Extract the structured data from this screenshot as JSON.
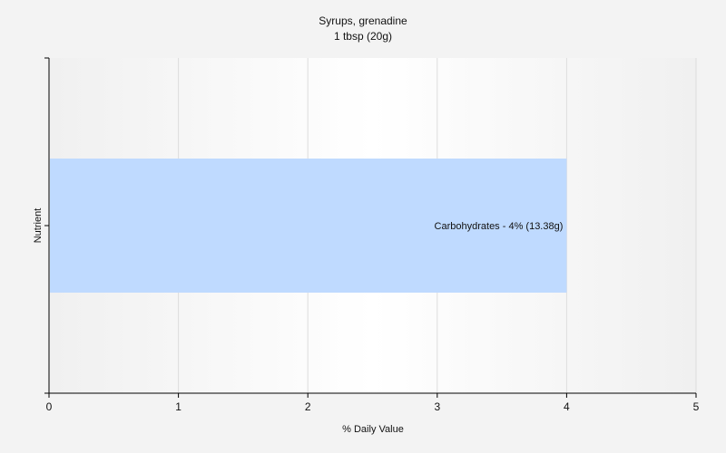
{
  "chart_data": {
    "type": "bar",
    "orientation": "horizontal",
    "title": "Syrups, grenadine",
    "subtitle": "1 tbsp (20g)",
    "xlabel": "% Daily Value",
    "ylabel": "Nutrient",
    "xlim": [
      0,
      5
    ],
    "xticks": [
      "0",
      "1",
      "2",
      "3",
      "4",
      "5"
    ],
    "grid": true,
    "categories": [
      "Carbohydrates"
    ],
    "values": [
      4
    ],
    "data_labels": [
      "Carbohydrates - 4% (13.38g)"
    ],
    "colors": {
      "bar": "#bfdaff",
      "grid": "#dddddd",
      "axis": "#000000",
      "background": "#f3f3f3",
      "plot_background": "#ffffff"
    }
  }
}
